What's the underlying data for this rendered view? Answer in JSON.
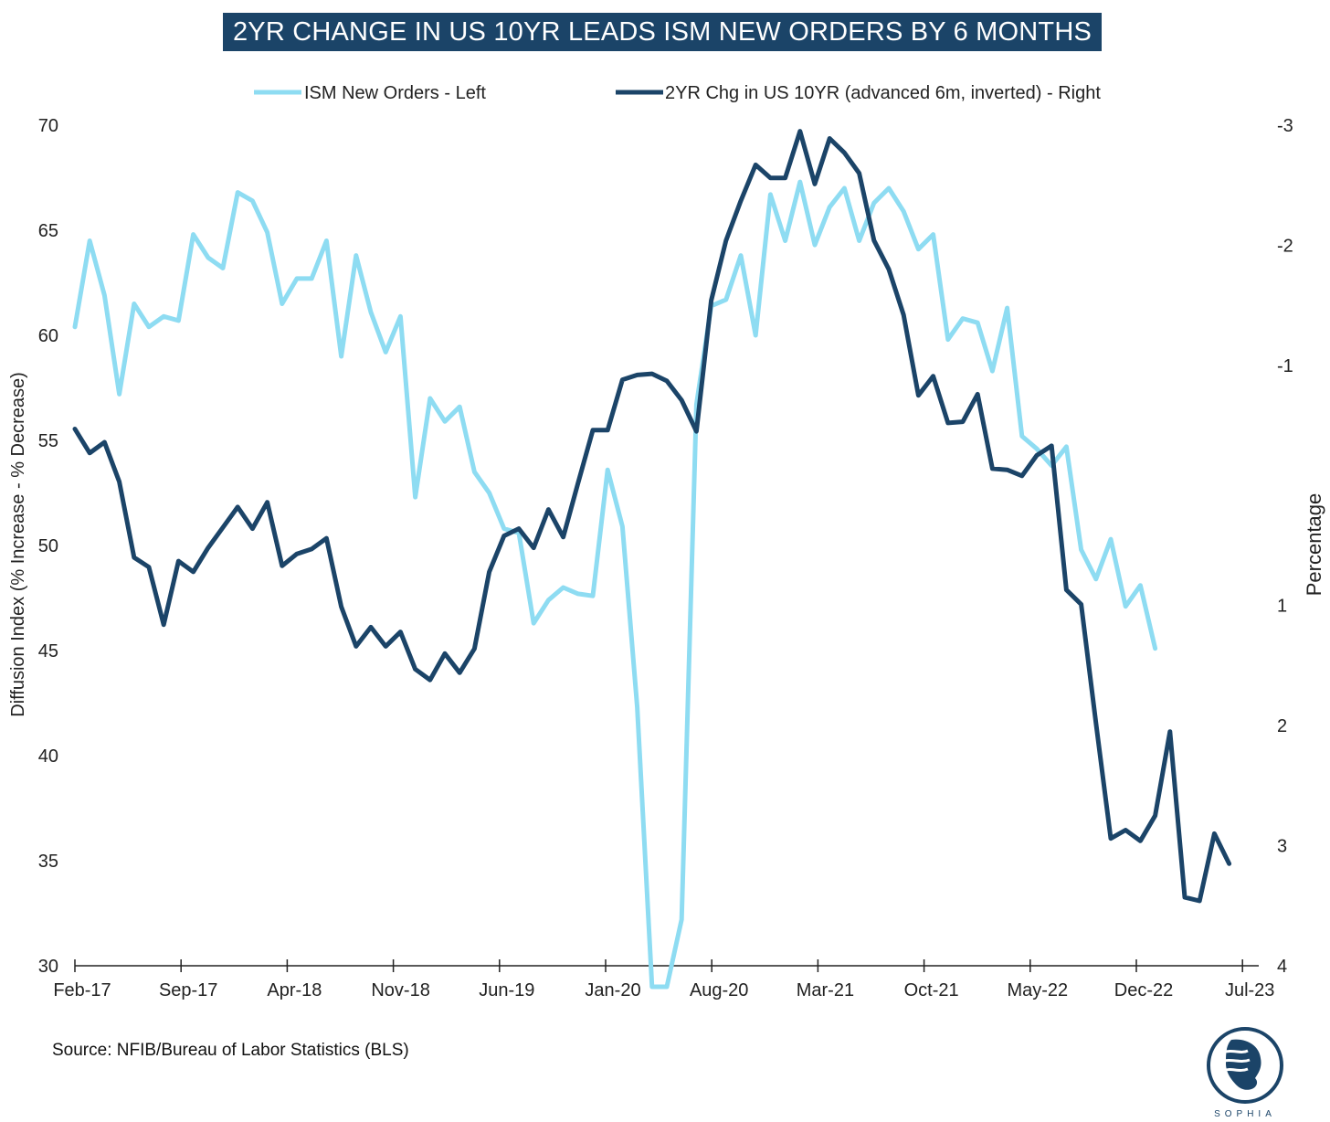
{
  "title": "2YR CHANGE IN US 10YR LEADS ISM NEW ORDERS BY 6 MONTHS",
  "source": "Source: NFIB/Bureau of Labor Statistics (BLS)",
  "logo_text": "SOPHIA",
  "colors": {
    "title_bg": "#1b4468",
    "ism": "#8edcf2",
    "yield": "#1b4468"
  },
  "chart_data": {
    "type": "line",
    "title": "2YR CHANGE IN US 10YR LEADS ISM NEW ORDERS BY 6 MONTHS",
    "xlabel": "",
    "ylabel_left": "Diffusion Index (% Increase - % Decrease)",
    "ylabel_right": "Percentage",
    "ylim_left": [
      30,
      70
    ],
    "ylim_right": [
      -3,
      4
    ],
    "right_axis_inverted": true,
    "grid": false,
    "legend_position": "top",
    "x_tick_labels": [
      "Feb-17",
      "Sep-17",
      "Apr-18",
      "Nov-18",
      "Jun-19",
      "Jan-20",
      "Aug-20",
      "Mar-21",
      "Oct-21",
      "May-22",
      "Dec-22",
      "Jul-23"
    ],
    "y_left_ticks": [
      "30",
      "35",
      "40",
      "45",
      "50",
      "55",
      "60",
      "65",
      "70"
    ],
    "y_right_ticks": [
      "-3",
      "-2",
      "-1",
      "1",
      "2",
      "3",
      "4"
    ],
    "x_start": "2017-01",
    "series": [
      {
        "name": "ISM New Orders - Left",
        "axis": "left",
        "values": [
          60.4,
          64.5,
          61.9,
          57.2,
          61.5,
          60.4,
          60.9,
          60.7,
          64.8,
          63.7,
          63.2,
          66.8,
          66.4,
          64.9,
          61.5,
          62.7,
          62.7,
          64.5,
          59.0,
          63.8,
          61.1,
          59.2,
          60.9,
          52.3,
          57.0,
          55.9,
          56.6,
          53.5,
          52.5,
          50.8,
          50.6,
          46.3,
          47.4,
          48.0,
          47.7,
          47.6,
          53.6,
          50.9,
          42.3,
          29.0,
          29.0,
          32.2,
          56.7,
          61.4,
          61.7,
          63.8,
          60.0,
          66.7,
          64.5,
          67.3,
          64.3,
          66.1,
          67.0,
          64.5,
          66.3,
          67.0,
          65.9,
          64.1,
          64.8,
          59.8,
          60.8,
          60.6,
          58.3,
          61.3,
          55.2,
          54.6,
          53.8,
          54.7,
          49.8,
          48.4,
          50.3,
          47.1,
          48.1,
          45.1
        ]
      },
      {
        "name": "2YR Chg in US 10YR (advanced 6m, inverted) - Right",
        "axis": "right",
        "values": [
          -0.47,
          -0.27,
          -0.36,
          -0.03,
          0.6,
          0.68,
          1.16,
          0.63,
          0.72,
          0.52,
          0.35,
          0.18,
          0.36,
          0.14,
          0.67,
          0.57,
          0.53,
          0.44,
          1.01,
          1.34,
          1.18,
          1.34,
          1.22,
          1.53,
          1.62,
          1.4,
          1.56,
          1.36,
          0.72,
          0.42,
          0.36,
          0.52,
          0.2,
          0.43,
          -0.02,
          -0.46,
          -0.46,
          -0.88,
          -0.92,
          -0.93,
          -0.87,
          -0.71,
          -0.45,
          -1.54,
          -2.04,
          -2.37,
          -2.67,
          -2.56,
          -2.56,
          -2.95,
          -2.51,
          -2.89,
          -2.77,
          -2.6,
          -2.04,
          -1.8,
          -1.42,
          -0.75,
          -0.91,
          -0.52,
          -0.53,
          -0.76,
          -0.14,
          -0.13,
          -0.08,
          -0.25,
          -0.33,
          0.87,
          0.99,
          1.98,
          2.94,
          2.87,
          2.96,
          2.75,
          2.05,
          3.43,
          3.46,
          2.9,
          3.15
        ]
      }
    ]
  }
}
